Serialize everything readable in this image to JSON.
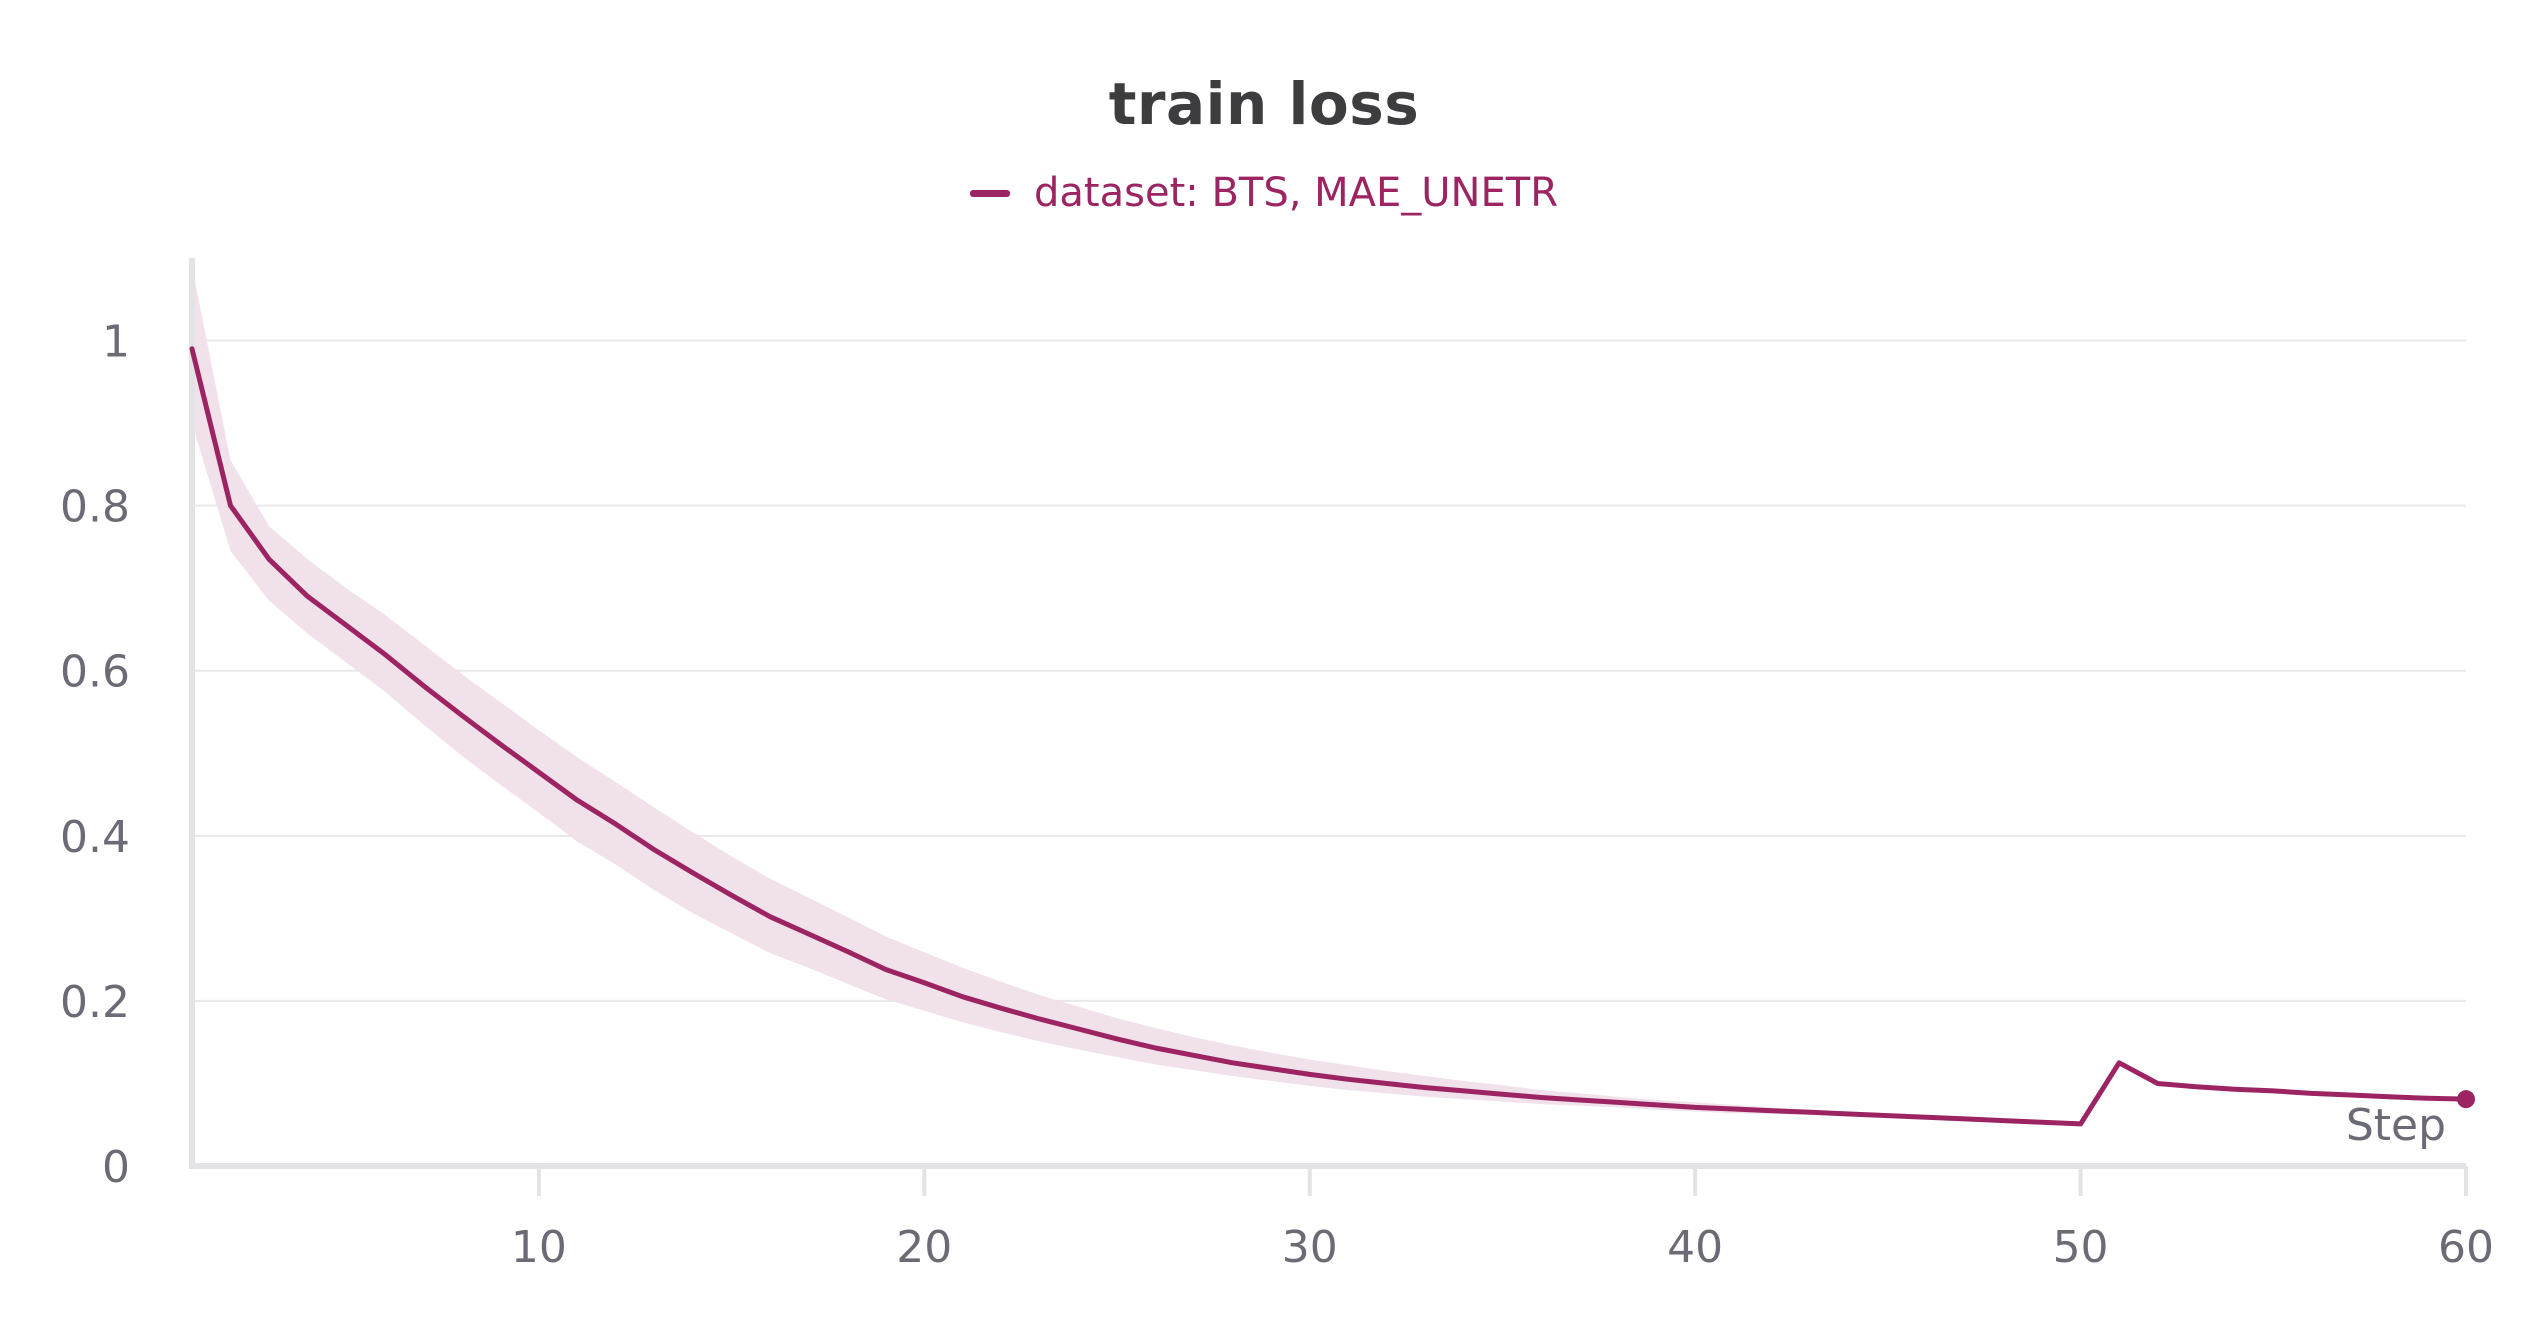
{
  "chart_data": {
    "type": "line",
    "title": "train loss",
    "xlabel": "Step",
    "ylabel": "",
    "xlim": [
      1,
      60
    ],
    "ylim": [
      0,
      1.1
    ],
    "x_ticks": [
      10,
      20,
      30,
      40,
      50,
      60
    ],
    "x_tick_labels": [
      "10",
      "20",
      "30",
      "40",
      "50",
      "60"
    ],
    "y_ticks": [
      0,
      0.2,
      0.4,
      0.6,
      0.8,
      1
    ],
    "y_tick_labels": [
      "0",
      "0.2",
      "0.4",
      "0.6",
      "0.8",
      "1"
    ],
    "grid": "horizontal",
    "legend_position": "top-center",
    "series": [
      {
        "name": "dataset: BTS, MAE_UNETR",
        "color": "#9c2462",
        "band_color": "#f1e1ea",
        "x": [
          1,
          2,
          3,
          4,
          5,
          6,
          7,
          8,
          9,
          10,
          11,
          12,
          13,
          14,
          15,
          16,
          17,
          18,
          19,
          20,
          21,
          22,
          23,
          24,
          25,
          26,
          27,
          28,
          29,
          30,
          31,
          32,
          33,
          34,
          35,
          36,
          37,
          38,
          39,
          40,
          41,
          42,
          43,
          44,
          45,
          46,
          47,
          48,
          49,
          50,
          51,
          52,
          53,
          54,
          55,
          56,
          57,
          58,
          59,
          60
        ],
        "values": [
          0.99,
          0.8,
          0.735,
          0.69,
          0.655,
          0.62,
          0.582,
          0.546,
          0.511,
          0.477,
          0.443,
          0.414,
          0.383,
          0.355,
          0.328,
          0.302,
          0.281,
          0.26,
          0.238,
          0.222,
          0.205,
          0.191,
          0.178,
          0.166,
          0.154,
          0.143,
          0.134,
          0.125,
          0.118,
          0.111,
          0.105,
          0.1,
          0.095,
          0.091,
          0.087,
          0.083,
          0.08,
          0.077,
          0.074,
          0.071,
          0.069,
          0.067,
          0.065,
          0.063,
          0.061,
          0.059,
          0.057,
          0.055,
          0.053,
          0.051,
          0.125,
          0.1,
          0.096,
          0.093,
          0.091,
          0.088,
          0.086,
          0.084,
          0.082,
          0.081
        ],
        "upper": [
          1.09,
          0.855,
          0.775,
          0.735,
          0.7,
          0.668,
          0.632,
          0.596,
          0.562,
          0.528,
          0.495,
          0.465,
          0.434,
          0.404,
          0.375,
          0.348,
          0.325,
          0.302,
          0.278,
          0.259,
          0.24,
          0.223,
          0.207,
          0.193,
          0.179,
          0.167,
          0.156,
          0.146,
          0.137,
          0.129,
          0.122,
          0.115,
          0.109,
          0.103,
          0.098,
          0.092,
          0.088,
          0.084,
          0.08,
          0.077,
          0.074,
          0.071,
          0.068,
          0.065,
          0.063,
          0.061,
          0.059,
          0.057,
          0.055,
          0.053,
          0.125,
          0.1,
          0.096,
          0.093,
          0.091,
          0.088,
          0.086,
          0.084,
          0.082,
          0.081
        ],
        "lower": [
          0.9,
          0.745,
          0.685,
          0.645,
          0.61,
          0.575,
          0.535,
          0.497,
          0.462,
          0.428,
          0.393,
          0.365,
          0.334,
          0.306,
          0.282,
          0.258,
          0.24,
          0.221,
          0.202,
          0.188,
          0.174,
          0.162,
          0.151,
          0.141,
          0.132,
          0.123,
          0.116,
          0.109,
          0.103,
          0.097,
          0.092,
          0.088,
          0.084,
          0.081,
          0.078,
          0.075,
          0.073,
          0.071,
          0.068,
          0.066,
          0.064,
          0.063,
          0.062,
          0.061,
          0.059,
          0.057,
          0.055,
          0.053,
          0.051,
          0.049,
          0.125,
          0.1,
          0.096,
          0.093,
          0.091,
          0.088,
          0.086,
          0.084,
          0.082,
          0.081
        ]
      }
    ]
  }
}
